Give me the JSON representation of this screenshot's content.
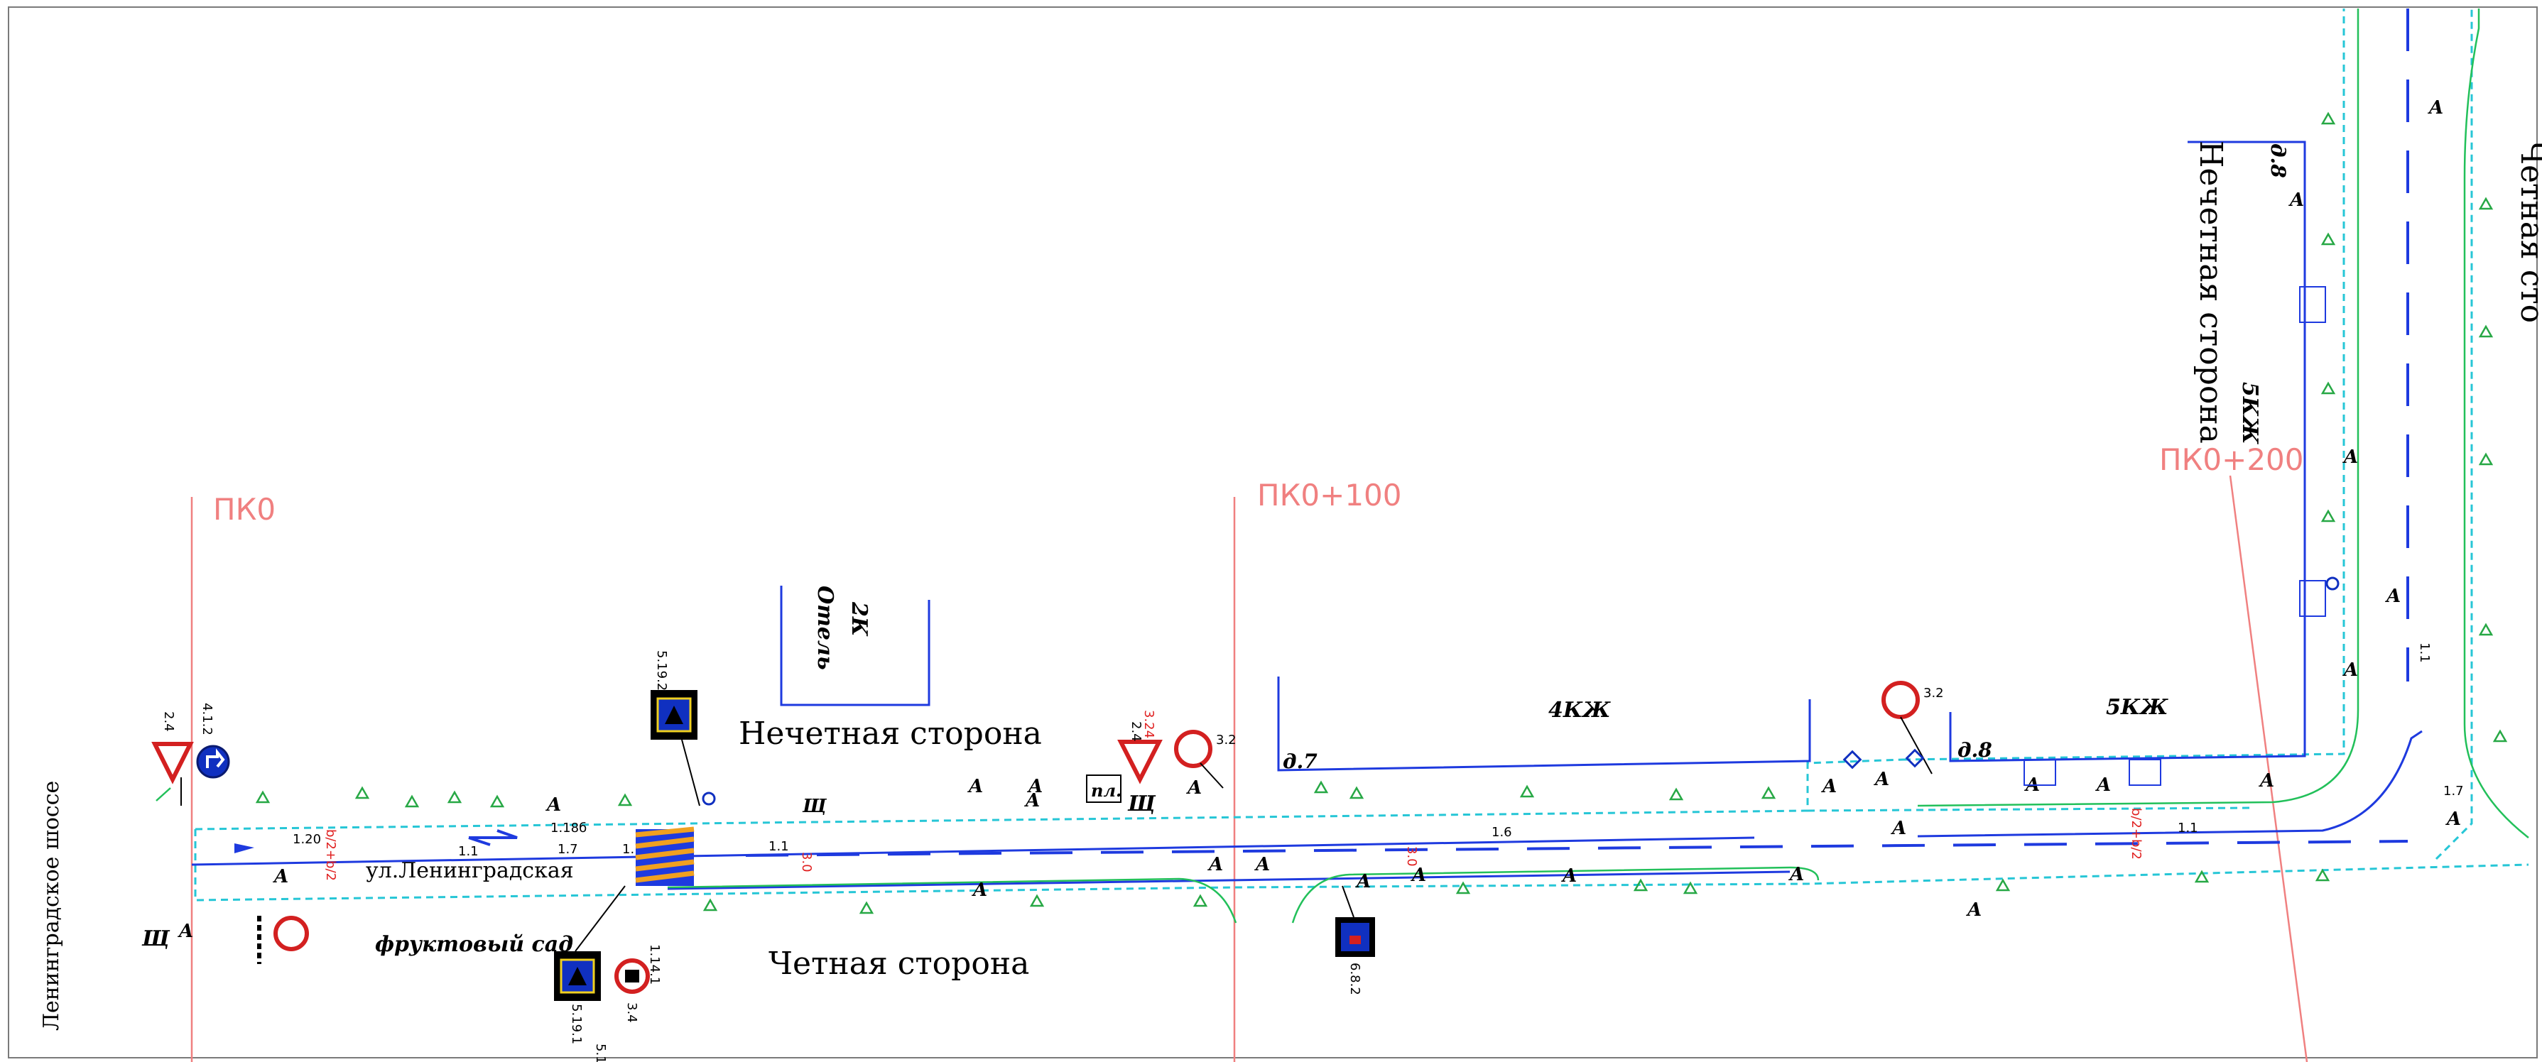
{
  "pickets": {
    "pk0": "ПК0",
    "pk100": "ПК0+100",
    "pk200": "ПК0+200"
  },
  "labels": {
    "street": "ул.Ленинградская",
    "highway": "Ленинградское шоссе",
    "odd_side_top": "Нечетная сторона",
    "odd_side_right": "Нечетная сторона",
    "even_side": "Четная сторона",
    "orchard": "фруктовый сад",
    "right_edge_fragment": "Четная сто",
    "hotel_floors": "2К",
    "hotel": "Отель",
    "building_4kzh": "4КЖ",
    "building_5kzh_a": "5КЖ",
    "building_5kzh_b": "5КЖ",
    "house_7": "д.7",
    "house_8_a": "д.8",
    "house_8_b": "д.8",
    "shield_a": "Щ",
    "shield_b": "Щ",
    "shield_c": "Щ",
    "platform": "пл.",
    "stop": "А"
  },
  "signs": {
    "s2_4_a": "2.4",
    "s4_1_2": "4.1.2",
    "s5_19_2": "5.19.2",
    "s5_19_1": "5.19.1",
    "s3_4": "3.4",
    "s5_1": "5.1",
    "s2_4_b": "2.4",
    "s3_2_a": "3.2",
    "s6_8_2": "6.8.2",
    "s3_2_b": "3.2",
    "s1_1": "1.1",
    "s3_4_b": "3.4",
    "s3_24": "3.24"
  },
  "markings": {
    "m1_20": "1.20",
    "m1_18": "1.18б",
    "m1_1_a": "1.1",
    "m1_7_a": "1.7",
    "m1_1_b": "1.1",
    "m1_1_c": "1.1",
    "m1_6": "1.6",
    "m1_1_d": "1.1",
    "m1_7_b": "1.7",
    "m1_1_e": "1.1",
    "m1_14": "1.14.1"
  },
  "widths": {
    "w_a": "b/2+b/2",
    "w_b": "3.0",
    "w_c": "3.0",
    "w_d": "b/2+b/2"
  },
  "colors": {
    "road": "#1e3adf",
    "curb": "#22c05a",
    "boundary": "#26c6d6",
    "picket": "#f08080",
    "sign_red": "#d32020",
    "sign_blue": "#1030c0",
    "tree": "#27a845"
  }
}
